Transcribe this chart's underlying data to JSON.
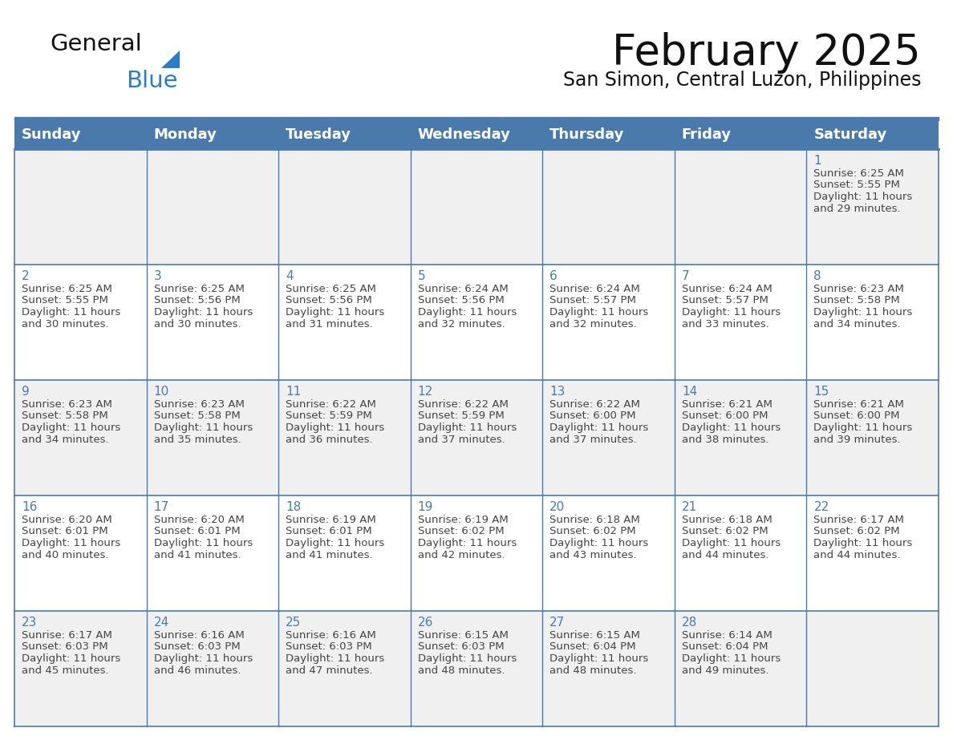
{
  "title": "February 2025",
  "subtitle": "San Simon, Central Luzon, Philippines",
  "header_bg_color": "#4a7aab",
  "header_text_color": "#ffffff",
  "row0_bg": "#f0f0f0",
  "row1_bg": "#ffffff",
  "day_headers": [
    "Sunday",
    "Monday",
    "Tuesday",
    "Wednesday",
    "Thursday",
    "Friday",
    "Saturday"
  ],
  "title_fontsize": 38,
  "subtitle_fontsize": 17,
  "header_fontsize": 13,
  "day_num_fontsize": 11,
  "info_fontsize": 9.5,
  "border_color": "#4a7aab",
  "text_color": "#444444",
  "day_num_color": "#4a7aab",
  "logo_color_general": "#111111",
  "logo_color_blue": "#2a7ec8",
  "calendar_data": [
    [
      null,
      null,
      null,
      null,
      null,
      null,
      1
    ],
    [
      2,
      3,
      4,
      5,
      6,
      7,
      8
    ],
    [
      9,
      10,
      11,
      12,
      13,
      14,
      15
    ],
    [
      16,
      17,
      18,
      19,
      20,
      21,
      22
    ],
    [
      23,
      24,
      25,
      26,
      27,
      28,
      null
    ]
  ],
  "sunrise_data": {
    "1": "6:25 AM",
    "2": "6:25 AM",
    "3": "6:25 AM",
    "4": "6:25 AM",
    "5": "6:24 AM",
    "6": "6:24 AM",
    "7": "6:24 AM",
    "8": "6:23 AM",
    "9": "6:23 AM",
    "10": "6:23 AM",
    "11": "6:22 AM",
    "12": "6:22 AM",
    "13": "6:22 AM",
    "14": "6:21 AM",
    "15": "6:21 AM",
    "16": "6:20 AM",
    "17": "6:20 AM",
    "18": "6:19 AM",
    "19": "6:19 AM",
    "20": "6:18 AM",
    "21": "6:18 AM",
    "22": "6:17 AM",
    "23": "6:17 AM",
    "24": "6:16 AM",
    "25": "6:16 AM",
    "26": "6:15 AM",
    "27": "6:15 AM",
    "28": "6:14 AM"
  },
  "sunset_data": {
    "1": "5:55 PM",
    "2": "5:55 PM",
    "3": "5:56 PM",
    "4": "5:56 PM",
    "5": "5:56 PM",
    "6": "5:57 PM",
    "7": "5:57 PM",
    "8": "5:58 PM",
    "9": "5:58 PM",
    "10": "5:58 PM",
    "11": "5:59 PM",
    "12": "5:59 PM",
    "13": "6:00 PM",
    "14": "6:00 PM",
    "15": "6:00 PM",
    "16": "6:01 PM",
    "17": "6:01 PM",
    "18": "6:01 PM",
    "19": "6:02 PM",
    "20": "6:02 PM",
    "21": "6:02 PM",
    "22": "6:02 PM",
    "23": "6:03 PM",
    "24": "6:03 PM",
    "25": "6:03 PM",
    "26": "6:03 PM",
    "27": "6:04 PM",
    "28": "6:04 PM"
  },
  "daylight_data": {
    "1": "and 29 minutes.",
    "2": "and 30 minutes.",
    "3": "and 30 minutes.",
    "4": "and 31 minutes.",
    "5": "and 32 minutes.",
    "6": "and 32 minutes.",
    "7": "and 33 minutes.",
    "8": "and 34 minutes.",
    "9": "and 34 minutes.",
    "10": "and 35 minutes.",
    "11": "and 36 minutes.",
    "12": "and 37 minutes.",
    "13": "and 37 minutes.",
    "14": "and 38 minutes.",
    "15": "and 39 minutes.",
    "16": "and 40 minutes.",
    "17": "and 41 minutes.",
    "18": "and 41 minutes.",
    "19": "and 42 minutes.",
    "20": "and 43 minutes.",
    "21": "and 44 minutes.",
    "22": "and 44 minutes.",
    "23": "and 45 minutes.",
    "24": "and 46 minutes.",
    "25": "and 47 minutes.",
    "26": "and 48 minutes.",
    "27": "and 48 minutes.",
    "28": "and 49 minutes."
  }
}
